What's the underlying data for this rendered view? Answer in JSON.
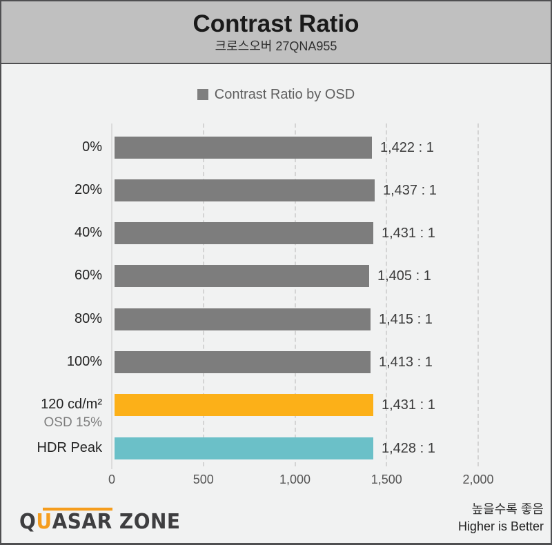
{
  "header": {
    "title": "Contrast Ratio",
    "subtitle": "크로스오버 27QNA955"
  },
  "legend": {
    "label": "Contrast Ratio by OSD"
  },
  "chart_data": {
    "type": "bar",
    "orientation": "horizontal",
    "series_name": "Contrast Ratio by OSD",
    "categories": [
      "0%",
      "20%",
      "40%",
      "60%",
      "80%",
      "100%",
      "120 cd/m²",
      "HDR Peak"
    ],
    "sublabels": [
      "",
      "",
      "",
      "",
      "",
      "",
      "OSD 15%",
      ""
    ],
    "values": [
      1422,
      1437,
      1431,
      1405,
      1415,
      1413,
      1431,
      1428
    ],
    "value_labels": [
      "1,422 : 1",
      "1,437 : 1",
      "1,431 : 1",
      "1,405 : 1",
      "1,415 : 1",
      "1,413 : 1",
      "1,431 : 1",
      "1,428 : 1"
    ],
    "bar_colors": [
      "#7d7d7d",
      "#7d7d7d",
      "#7d7d7d",
      "#7d7d7d",
      "#7d7d7d",
      "#7d7d7d",
      "#fcb018",
      "#6bc0c8"
    ],
    "xlim": [
      0,
      2000
    ],
    "x_ticks": [
      {
        "value": 0,
        "label": "0"
      },
      {
        "value": 500,
        "label": "500"
      },
      {
        "value": 1000,
        "label": "1,000"
      },
      {
        "value": 1500,
        "label": "1,500"
      },
      {
        "value": 2000,
        "label": "2,000"
      }
    ],
    "grid": "dashed-vertical",
    "legend_position": "top-center",
    "higher_is_better": true
  },
  "footer": {
    "logo_text": "QUASAR ZONE",
    "logo_parts": {
      "q": "Q",
      "u": "U",
      "asar": "ASAR",
      "zone": " ZONE"
    },
    "note_ko": "높을수록 좋음",
    "note_en": "Higher is Better"
  },
  "colors": {
    "border": "#4f4f51",
    "header_bg": "#c0c0c0",
    "page_bg": "#f1f2f2",
    "bar_gray": "#7d7d7d",
    "bar_orange": "#fcb018",
    "bar_teal": "#6bc0c8",
    "legend_swatch": "#7f7f7f",
    "logo_orange": "#f59d1e"
  }
}
